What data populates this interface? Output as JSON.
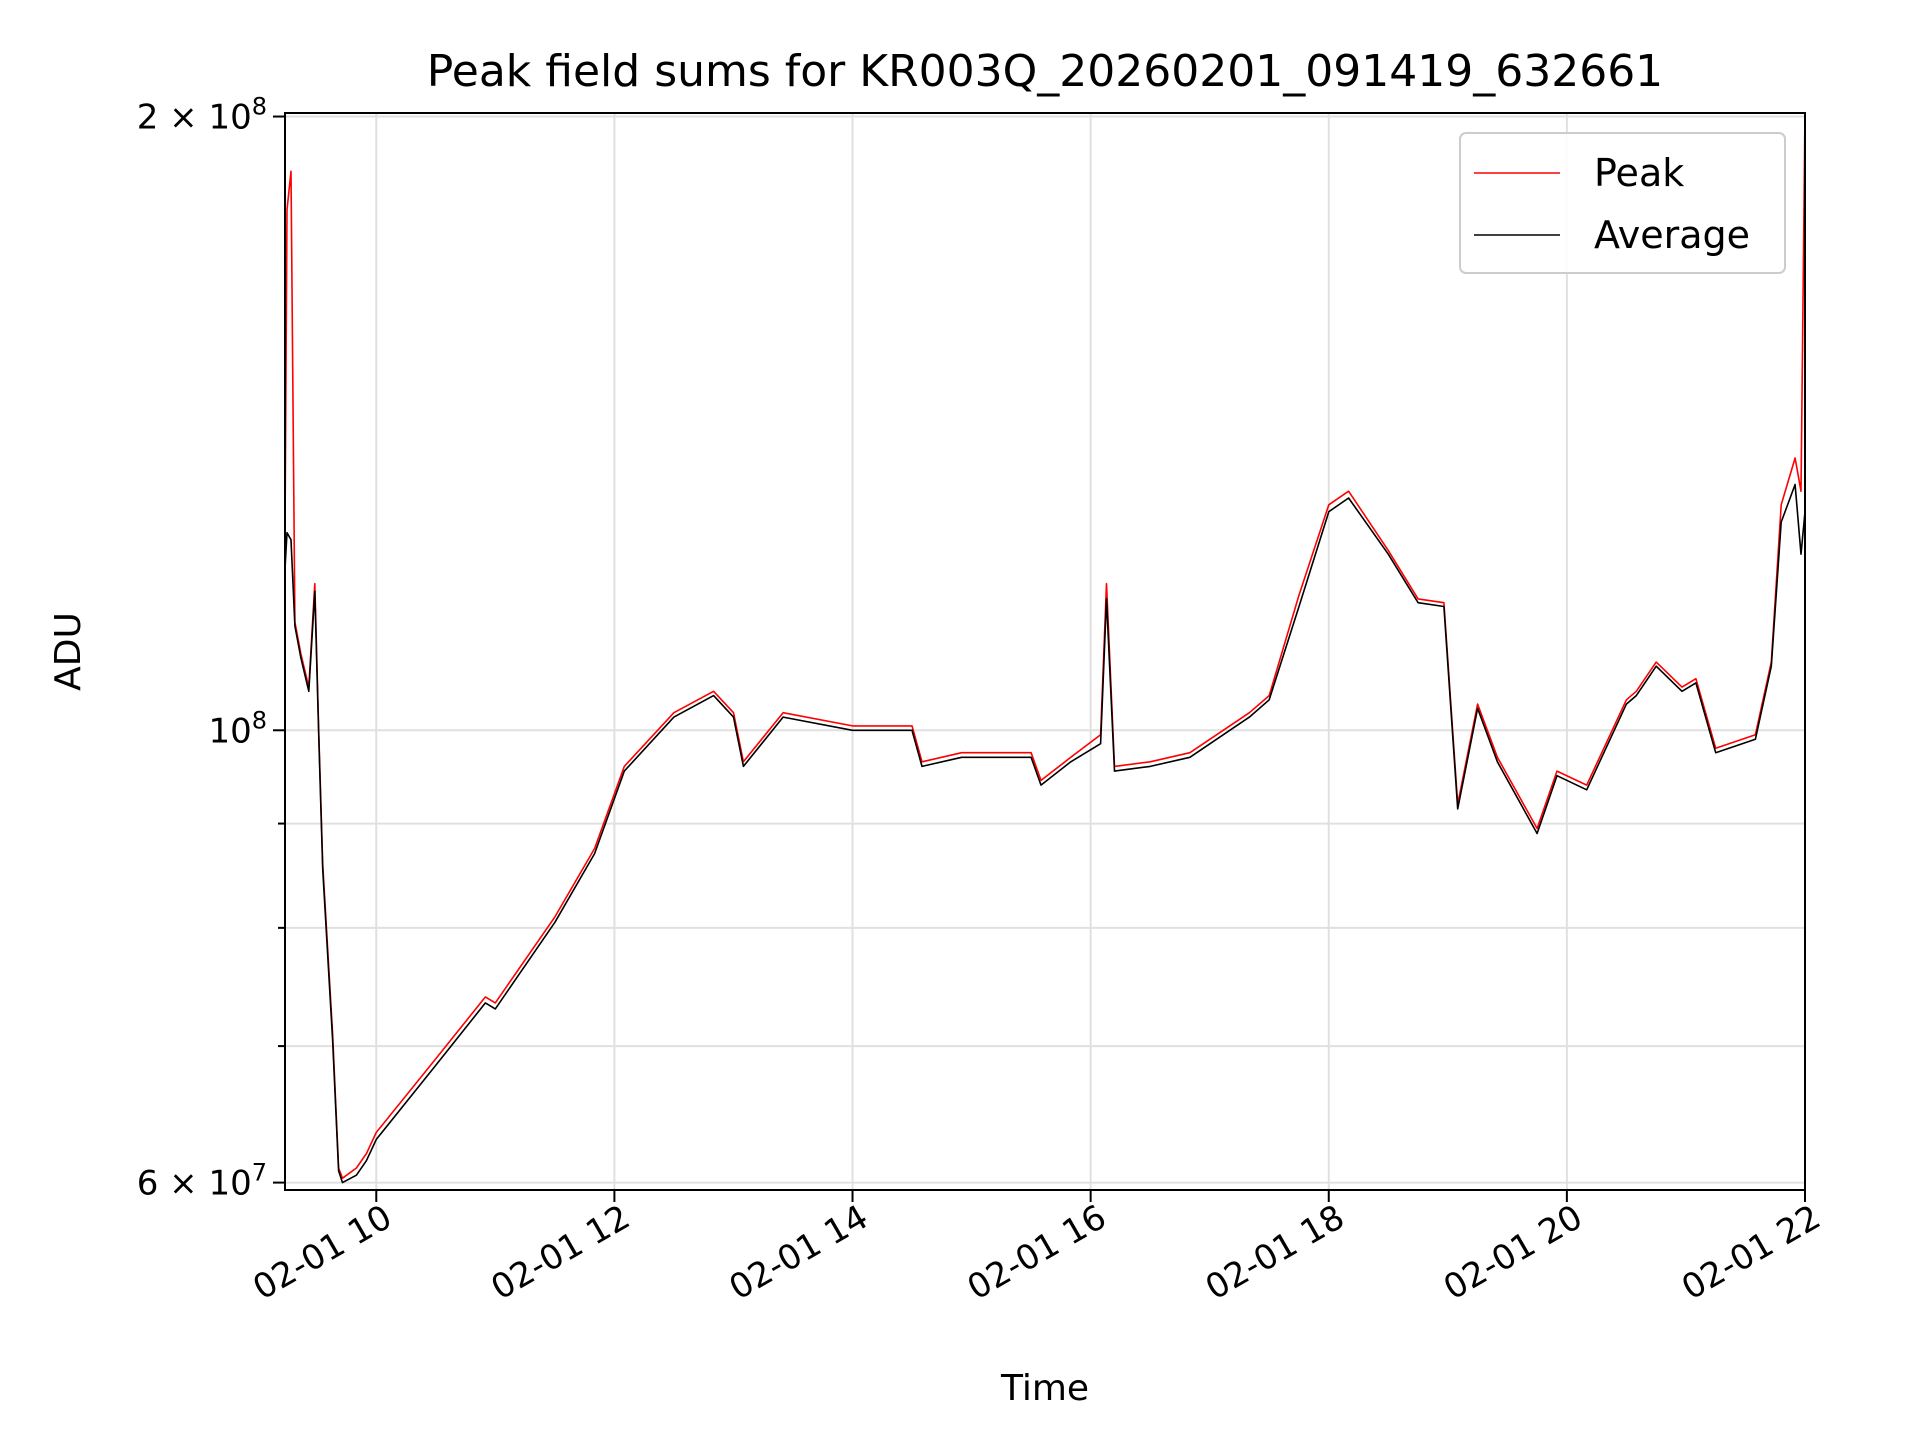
{
  "chart_data": {
    "type": "line",
    "title": "Peak field sums for KR003Q_20260201_091419_632661",
    "xlabel": "Time",
    "ylabel": "ADU",
    "yscale": "log",
    "ylim": [
      59500000,
      200800000
    ],
    "xlim": [
      "2026-02-01 09:14",
      "2026-02-01 22:00"
    ],
    "grid": true,
    "legend_position": "top-right",
    "x_ticks": [
      {
        "value": "2026-02-01 10:00",
        "label": "02-01 10"
      },
      {
        "value": "2026-02-01 12:00",
        "label": "02-01 12"
      },
      {
        "value": "2026-02-01 14:00",
        "label": "02-01 14"
      },
      {
        "value": "2026-02-01 16:00",
        "label": "02-01 16"
      },
      {
        "value": "2026-02-01 18:00",
        "label": "02-01 18"
      },
      {
        "value": "2026-02-01 20:00",
        "label": "02-01 20"
      },
      {
        "value": "2026-02-01 22:00",
        "label": "02-01 22"
      }
    ],
    "y_major_ticks": [
      {
        "value": 60000000,
        "mantissa": "6",
        "exponent": "7"
      },
      {
        "value": 100000000,
        "mantissa": "",
        "exponent": "8"
      },
      {
        "value": 200000000,
        "mantissa": "2",
        "exponent": "8"
      }
    ],
    "y_minor_ticks": [
      70000000,
      80000000,
      90000000
    ],
    "series": [
      {
        "name": "Peak",
        "color": "#ff0000",
        "x": [
          "2026-02-01 09:14",
          "2026-02-01 09:15",
          "2026-02-01 09:17",
          "2026-02-01 09:19",
          "2026-02-01 09:22",
          "2026-02-01 09:26",
          "2026-02-01 09:29",
          "2026-02-01 09:31",
          "2026-02-01 09:33",
          "2026-02-01 09:38",
          "2026-02-01 09:41",
          "2026-02-01 09:43",
          "2026-02-01 09:50",
          "2026-02-01 09:55",
          "2026-02-01 10:00",
          "2026-02-01 10:30",
          "2026-02-01 10:55",
          "2026-02-01 11:00",
          "2026-02-01 11:30",
          "2026-02-01 11:50",
          "2026-02-01 12:05",
          "2026-02-01 12:30",
          "2026-02-01 12:50",
          "2026-02-01 13:00",
          "2026-02-01 13:05",
          "2026-02-01 13:25",
          "2026-02-01 14:00",
          "2026-02-01 14:30",
          "2026-02-01 14:35",
          "2026-02-01 14:55",
          "2026-02-01 15:30",
          "2026-02-01 15:35",
          "2026-02-01 15:50",
          "2026-02-01 16:05",
          "2026-02-01 16:08",
          "2026-02-01 16:12",
          "2026-02-01 16:30",
          "2026-02-01 16:50",
          "2026-02-01 17:20",
          "2026-02-01 17:30",
          "2026-02-01 17:45",
          "2026-02-01 18:00",
          "2026-02-01 18:10",
          "2026-02-01 18:30",
          "2026-02-01 18:45",
          "2026-02-01 18:58",
          "2026-02-01 19:05",
          "2026-02-01 19:15",
          "2026-02-01 19:25",
          "2026-02-01 19:45",
          "2026-02-01 19:55",
          "2026-02-01 20:10",
          "2026-02-01 20:30",
          "2026-02-01 20:35",
          "2026-02-01 20:45",
          "2026-02-01 20:58",
          "2026-02-01 21:05",
          "2026-02-01 21:15",
          "2026-02-01 21:35",
          "2026-02-01 21:43",
          "2026-02-01 21:48",
          "2026-02-01 21:55",
          "2026-02-01 21:58",
          "2026-02-01 22:00"
        ],
        "values": [
          125000000,
          180000000,
          188000000,
          113000000,
          109000000,
          105000000,
          118000000,
          100000000,
          86000000,
          71000000,
          61000000,
          60300000,
          61000000,
          62000000,
          63500000,
          69000000,
          74000000,
          73500000,
          81000000,
          87500000,
          96000000,
          102000000,
          104500000,
          102000000,
          96500000,
          102000000,
          100500000,
          100500000,
          96500000,
          97500000,
          97500000,
          94500000,
          97000000,
          99500000,
          118000000,
          96000000,
          96500000,
          97500000,
          102000000,
          104000000,
          116500000,
          129000000,
          131000000,
          122500000,
          116000000,
          115500000,
          92000000,
          103000000,
          97000000,
          89500000,
          95500000,
          94000000,
          103500000,
          104500000,
          108000000,
          105000000,
          106000000,
          98000000,
          99500000,
          108000000,
          129000000,
          136000000,
          131000000,
          201000000
        ]
      },
      {
        "name": "Average",
        "color": "#000000",
        "x": [
          "2026-02-01 09:14",
          "2026-02-01 09:15",
          "2026-02-01 09:17",
          "2026-02-01 09:19",
          "2026-02-01 09:22",
          "2026-02-01 09:26",
          "2026-02-01 09:29",
          "2026-02-01 09:31",
          "2026-02-01 09:33",
          "2026-02-01 09:38",
          "2026-02-01 09:41",
          "2026-02-01 09:43",
          "2026-02-01 09:50",
          "2026-02-01 09:55",
          "2026-02-01 10:00",
          "2026-02-01 10:30",
          "2026-02-01 10:55",
          "2026-02-01 11:00",
          "2026-02-01 11:30",
          "2026-02-01 11:50",
          "2026-02-01 12:05",
          "2026-02-01 12:30",
          "2026-02-01 12:50",
          "2026-02-01 13:00",
          "2026-02-01 13:05",
          "2026-02-01 13:25",
          "2026-02-01 14:00",
          "2026-02-01 14:30",
          "2026-02-01 14:35",
          "2026-02-01 14:55",
          "2026-02-01 15:30",
          "2026-02-01 15:35",
          "2026-02-01 15:50",
          "2026-02-01 16:05",
          "2026-02-01 16:08",
          "2026-02-01 16:12",
          "2026-02-01 16:30",
          "2026-02-01 16:50",
          "2026-02-01 17:20",
          "2026-02-01 17:30",
          "2026-02-01 17:45",
          "2026-02-01 18:00",
          "2026-02-01 18:10",
          "2026-02-01 18:30",
          "2026-02-01 18:45",
          "2026-02-01 18:58",
          "2026-02-01 19:05",
          "2026-02-01 19:15",
          "2026-02-01 19:25",
          "2026-02-01 19:45",
          "2026-02-01 19:55",
          "2026-02-01 20:10",
          "2026-02-01 20:30",
          "2026-02-01 20:35",
          "2026-02-01 20:45",
          "2026-02-01 20:58",
          "2026-02-01 21:05",
          "2026-02-01 21:15",
          "2026-02-01 21:35",
          "2026-02-01 21:43",
          "2026-02-01 21:48",
          "2026-02-01 21:55",
          "2026-02-01 21:58",
          "2026-02-01 22:00"
        ],
        "values": [
          120000000,
          125000000,
          124000000,
          112500000,
          108500000,
          104500000,
          117000000,
          99500000,
          85500000,
          70500000,
          60800000,
          60000000,
          60500000,
          61500000,
          63000000,
          68500000,
          73500000,
          73000000,
          80500000,
          87000000,
          95500000,
          101500000,
          104000000,
          101500000,
          96000000,
          101500000,
          100000000,
          100000000,
          96000000,
          97000000,
          97000000,
          94000000,
          96500000,
          98500000,
          116000000,
          95500000,
          96000000,
          97000000,
          101500000,
          103500000,
          115000000,
          128000000,
          130000000,
          122000000,
          115500000,
          115000000,
          91500000,
          102500000,
          96500000,
          89000000,
          95000000,
          93500000,
          103000000,
          104000000,
          107500000,
          104500000,
          105500000,
          97500000,
          99000000,
          107500000,
          126500000,
          132000000,
          122000000,
          128000000
        ]
      }
    ]
  }
}
